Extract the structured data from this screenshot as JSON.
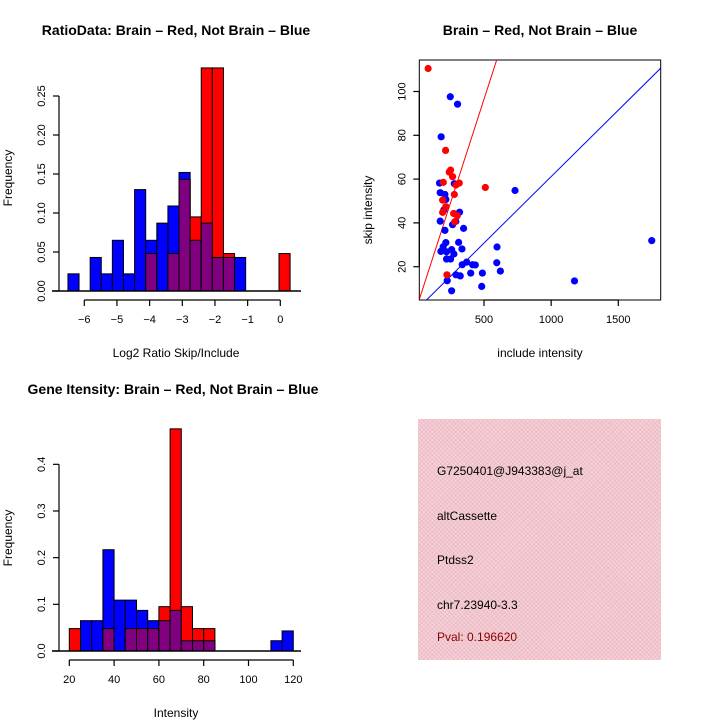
{
  "chart_data": [
    {
      "type": "bar",
      "title": "RatioData: Brain – Red, Not Brain – Blue",
      "xlabel": "Log2 Ratio Skip/Include",
      "ylabel": "Frequency",
      "xlim": [
        -6.6,
        0.7
      ],
      "ylim": [
        0,
        0.29
      ],
      "xtick_values": [
        -6,
        -5,
        -4,
        -3,
        -2,
        -1,
        0
      ],
      "xtick_labels": [
        "−6",
        "−5",
        "−4",
        "−3",
        "−2",
        "−1",
        "0"
      ],
      "ytick_values": [
        0,
        0.05,
        0.1,
        0.15,
        0.2,
        0.25
      ],
      "ytick_labels": [
        "0.00",
        "0.05",
        "0.10",
        "0.15",
        "0.20",
        "0.25"
      ],
      "bin_start": -6.5,
      "bin_width": 0.34,
      "overlap_color": "#800080",
      "series": [
        {
          "name": "Not Brain",
          "color": "#0000ff",
          "values": [
            0.022,
            0,
            0.043,
            0.022,
            0.065,
            0.022,
            0.13,
            0.065,
            0.087,
            0.109,
            0.152,
            0.065,
            0.087,
            0.043,
            0.043,
            0.043,
            0,
            0,
            0,
            0
          ]
        },
        {
          "name": "Brain",
          "color": "#ff0000",
          "values": [
            0,
            0,
            0,
            0,
            0,
            0,
            0,
            0.048,
            0,
            0.048,
            0.143,
            0.095,
            0.286,
            0.286,
            0.048,
            0,
            0,
            0,
            0,
            0.048
          ]
        }
      ]
    },
    {
      "type": "scatter",
      "title": "Brain – Red, Not Brain – Blue",
      "xlabel": "include intensity",
      "ylabel": "skip intensity",
      "xlim": [
        18,
        1816
      ],
      "ylim": [
        4.8,
        114.3
      ],
      "xtick_values": [
        500,
        1000,
        1500
      ],
      "xtick_labels": [
        "500",
        "1000",
        "1500"
      ],
      "ytick_values": [
        20,
        40,
        60,
        80,
        100
      ],
      "ytick_labels": [
        "20",
        "40",
        "60",
        "80",
        "100"
      ],
      "series": [
        {
          "name": "Not Brain",
          "color": "#0000ff",
          "points": [
            [
              249,
              97.6
            ],
            [
              303,
              94.2
            ],
            [
              181,
              79.3
            ],
            [
              169,
              58.2
            ],
            [
              279,
              57.9
            ],
            [
              174,
              53.8
            ],
            [
              209,
              53.0
            ],
            [
              216,
              50.7
            ],
            [
              201,
              45.9
            ],
            [
              318,
              44.9
            ],
            [
              174,
              40.8
            ],
            [
              290,
              40.7
            ],
            [
              348,
              37.5
            ],
            [
              266,
              39.2
            ],
            [
              209,
              36.6
            ],
            [
              311,
              31.1
            ],
            [
              216,
              31.0
            ],
            [
              196,
              29.1
            ],
            [
              731,
              54.8
            ],
            [
              179,
              27.0
            ],
            [
              221,
              26.8
            ],
            [
              259,
              27.8
            ],
            [
              276,
              25.8
            ],
            [
              336,
              28.1
            ],
            [
              597,
              29.0
            ],
            [
              251,
              23.5
            ],
            [
              221,
              23.5
            ],
            [
              371,
              22.1
            ],
            [
              338,
              20.9
            ],
            [
              415,
              20.9
            ],
            [
              435,
              20.8
            ],
            [
              595,
              21.8
            ],
            [
              401,
              17.1
            ],
            [
              488,
              17.1
            ],
            [
              622,
              18.0
            ],
            [
              291,
              16.3
            ],
            [
              323,
              15.8
            ],
            [
              226,
              13.6
            ],
            [
              1174,
              13.5
            ],
            [
              1749,
              31.9
            ],
            [
              483,
              11.0
            ],
            [
              259,
              9.0
            ]
          ]
        },
        {
          "name": "Brain",
          "color": "#ff0000",
          "points": [
            [
              84,
              110.5
            ],
            [
              214,
              73.1
            ],
            [
              251,
              64.1
            ],
            [
              241,
              63.2
            ],
            [
              266,
              61.1
            ],
            [
              197,
              58.5
            ],
            [
              316,
              58.2
            ],
            [
              291,
              57.3
            ],
            [
              510,
              56.2
            ],
            [
              192,
              50.4
            ],
            [
              279,
              53.0
            ],
            [
              216,
              47.4
            ],
            [
              192,
              44.8
            ],
            [
              274,
              44.3
            ],
            [
              301,
              43.3
            ],
            [
              282,
              40.5
            ],
            [
              224,
              16.3
            ]
          ]
        }
      ],
      "lines": [
        {
          "name": "Brain fit",
          "color": "#ff0000",
          "intercept": 1.57,
          "slope": 0.1898
        },
        {
          "name": "Not Brain fit",
          "color": "#0000ff",
          "intercept": 0.43,
          "slope": 0.0607
        }
      ]
    },
    {
      "type": "bar",
      "title": "Gene Itensity: Brain – Red, Not Brain – Blue",
      "xlabel": "Intensity",
      "ylabel": "Frequency",
      "xlim": [
        17,
        123
      ],
      "ylim": [
        0,
        0.48
      ],
      "xtick_values": [
        20,
        40,
        60,
        80,
        100,
        120
      ],
      "xtick_labels": [
        "20",
        "40",
        "60",
        "80",
        "100",
        "120"
      ],
      "ytick_values": [
        0,
        0.1,
        0.2,
        0.3,
        0.4
      ],
      "ytick_labels": [
        "0.0",
        "0.1",
        "0.2",
        "0.3",
        "0.4"
      ],
      "bin_start": 20,
      "bin_width": 5,
      "overlap_color": "#800080",
      "series": [
        {
          "name": "Not Brain",
          "color": "#0000ff",
          "values": [
            0,
            0.065,
            0.065,
            0.217,
            0.109,
            0.109,
            0.087,
            0.065,
            0.065,
            0.087,
            0.022,
            0.022,
            0.022,
            0,
            0,
            0,
            0,
            0,
            0.022,
            0.043
          ]
        },
        {
          "name": "Brain",
          "color": "#ff0000",
          "values": [
            0.048,
            0,
            0,
            0.048,
            0,
            0.048,
            0.048,
            0.048,
            0.095,
            0.476,
            0.095,
            0.048,
            0.048,
            0,
            0,
            0,
            0,
            0,
            0,
            0
          ]
        }
      ]
    }
  ],
  "info": {
    "probe_id": "G7250401@J943383@j_at",
    "event_type": "altCassette",
    "gene": "Ptdss2",
    "location": "chr7.23940-3.3",
    "pval": "Pval: 0.196620",
    "pval_color": "#8b0000",
    "background_color": "#f2c6cf"
  }
}
